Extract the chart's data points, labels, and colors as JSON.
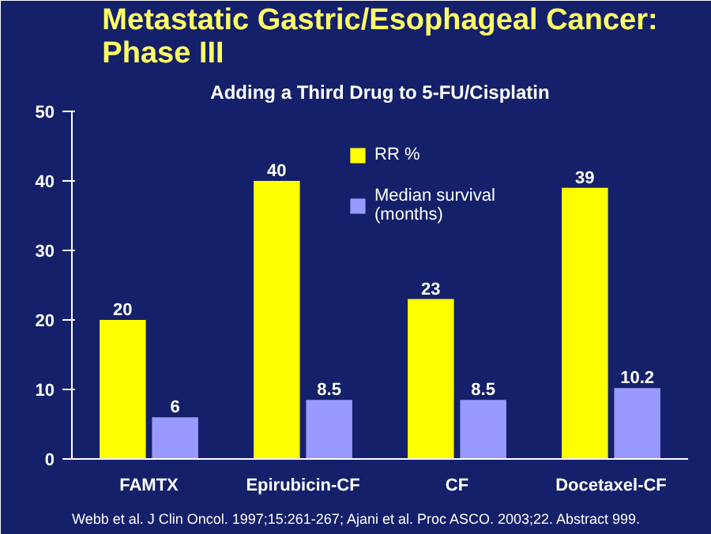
{
  "chart_data": {
    "type": "bar",
    "title": "Metastatic Gastric/Esophageal Cancer: Phase III",
    "subtitle": "Adding a Third Drug to 5-FU/Cisplatin",
    "categories": [
      "FAMTX",
      "Epirubicin-CF",
      "CF",
      "Docetaxel-CF"
    ],
    "series": [
      {
        "name": "RR %",
        "color": "#ffff00",
        "values": [
          20,
          40,
          23,
          39
        ]
      },
      {
        "name": "Median survival (months)",
        "color": "#9999ff",
        "values": [
          6,
          8.5,
          8.5,
          10.2
        ]
      }
    ],
    "ylim": [
      0,
      50
    ],
    "yticks": [
      0,
      10,
      20,
      30,
      40,
      50
    ],
    "grid": false,
    "legend": "top",
    "data_labels": true,
    "annotations": [
      "Webb et al. J Clin Oncol. 1997;15:261-267; Ajani et al. Proc ASCO. 2003;22. Abstract 999."
    ]
  }
}
